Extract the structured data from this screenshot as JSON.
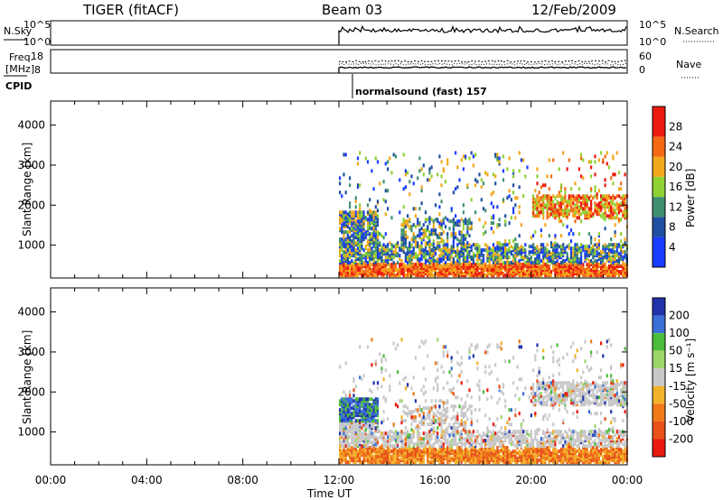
{
  "chart_data": [
    {
      "type": "heatmap",
      "name": "power",
      "header": {
        "left": "TIGER (fitACF)",
        "center": "Beam 03",
        "right": "12/Feb/2009"
      },
      "ylabel": "Slant Range [km]",
      "yticks": [
        1000,
        2000,
        3000,
        4000
      ],
      "ylim": [
        180,
        4600
      ],
      "xlim": [
        0,
        24
      ],
      "data_start_hour": 12,
      "colorbar": {
        "label": "Power [dB]",
        "ticks": [
          4,
          8,
          12,
          16,
          20,
          24,
          28
        ],
        "range": [
          0,
          32
        ],
        "bands": [
          {
            "from": 0,
            "to": 6,
            "color": "#1a3cff"
          },
          {
            "from": 6,
            "to": 10,
            "color": "#1f4fa0"
          },
          {
            "from": 10,
            "to": 14,
            "color": "#3f8f6f"
          },
          {
            "from": 14,
            "to": 18,
            "color": "#8fd233"
          },
          {
            "from": 18,
            "to": 22,
            "color": "#f2a81c"
          },
          {
            "from": 22,
            "to": 26,
            "color": "#f46a14"
          },
          {
            "from": 26,
            "to": 32,
            "color": "#ea1a0f"
          }
        ]
      }
    },
    {
      "type": "heatmap",
      "name": "velocity",
      "ylabel": "Slant Range [km]",
      "yticks": [
        1000,
        2000,
        3000,
        4000
      ],
      "ylim": [
        180,
        4600
      ],
      "xlim": [
        0,
        24
      ],
      "xticks": [
        "00:00",
        "04:00",
        "08:00",
        "12:00",
        "16:00",
        "20:00",
        "00:00"
      ],
      "xlabel": "Time UT",
      "colorbar": {
        "label": "Velocity [m s⁻¹]",
        "ticks": [
          "200",
          "100",
          "50",
          "15",
          "-15",
          "-50",
          "-100",
          "-200"
        ],
        "colors": [
          "#2233aa",
          "#3a6fd8",
          "#4cbc3c",
          "#9bd66a",
          "#c8c8c8",
          "#f2b22a",
          "#f07a18",
          "#e8501a",
          "#e81a10"
        ]
      }
    }
  ],
  "status_panels": {
    "sky": {
      "left_label": "N.Sky",
      "left_ticks": [
        "10^5",
        "10^0"
      ],
      "right_ticks": [
        "10^5",
        "10^0"
      ],
      "right_label": "N.Search"
    },
    "freq": {
      "left_label_line1": "Freq.",
      "left_label_line2": "[MHz]",
      "left_ticks": [
        "18",
        "8"
      ],
      "right_ticks": [
        "60",
        "0"
      ],
      "right_label": "Nave"
    },
    "cpid": {
      "label": "CPID",
      "mode_text": "normalsound (fast) 157"
    }
  }
}
